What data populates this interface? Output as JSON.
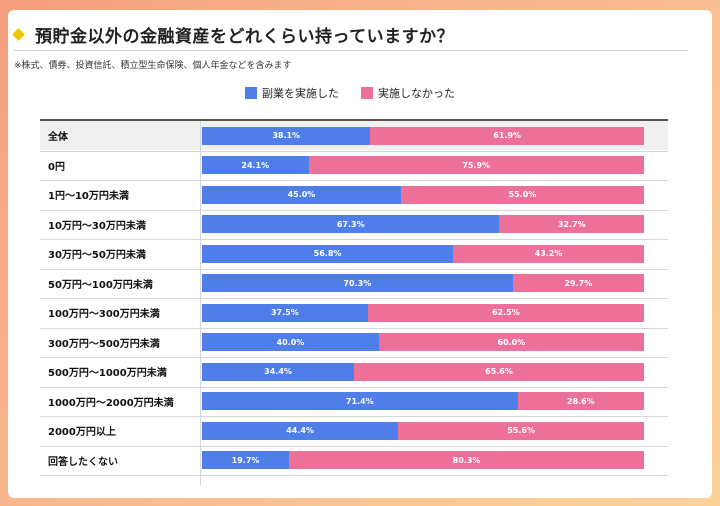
{
  "title": "預貯金以外の金融資産をどれくらい持っていますか？",
  "note": "※株式、債券、投資信託、積立型生命保険、個人年金などを含みます",
  "colors": {
    "series_a": "#4f7ee8",
    "series_b": "#ed7099",
    "accent": "#f2c500"
  },
  "chart_data": {
    "type": "bar",
    "orientation": "horizontal-stacked-100",
    "title": "預貯金以外の金融資産をどれくらい持っていますか？",
    "legend": [
      "副業を実施した",
      "実施しなかった"
    ],
    "legend_position": "top-center",
    "categories": [
      "全体",
      "0円",
      "1円〜10万円未満",
      "10万円〜30万円未満",
      "30万円〜50万円未満",
      "50万円〜100万円未満",
      "100万円〜300万円未満",
      "300万円〜500万円未満",
      "500万円〜1000万円未満",
      "1000万円〜2000万円未満",
      "2000万円以上",
      "回答したくない"
    ],
    "series": [
      {
        "name": "副業を実施した",
        "values": [
          38.1,
          24.1,
          45.0,
          67.3,
          56.8,
          70.3,
          37.5,
          40.0,
          34.4,
          71.4,
          44.4,
          19.7
        ],
        "labels": [
          "38.1%",
          "24.1%",
          "45.0%",
          "67.3%",
          "56.8%",
          "70.3%",
          "37.5%",
          "40.0%",
          "34.4%",
          "71.4%",
          "44.4%",
          "19.7%"
        ]
      },
      {
        "name": "実施しなかった",
        "values": [
          61.9,
          75.9,
          55.0,
          32.7,
          43.2,
          29.7,
          62.5,
          60.0,
          65.6,
          28.6,
          55.6,
          80.3
        ],
        "labels": [
          "61.9%",
          "75.9%",
          "55.0%",
          "32.7%",
          "43.2%",
          "29.7%",
          "62.5%",
          "60.0%",
          "65.6%",
          "28.6%",
          "55.6%",
          "80.3%"
        ]
      }
    ]
  }
}
